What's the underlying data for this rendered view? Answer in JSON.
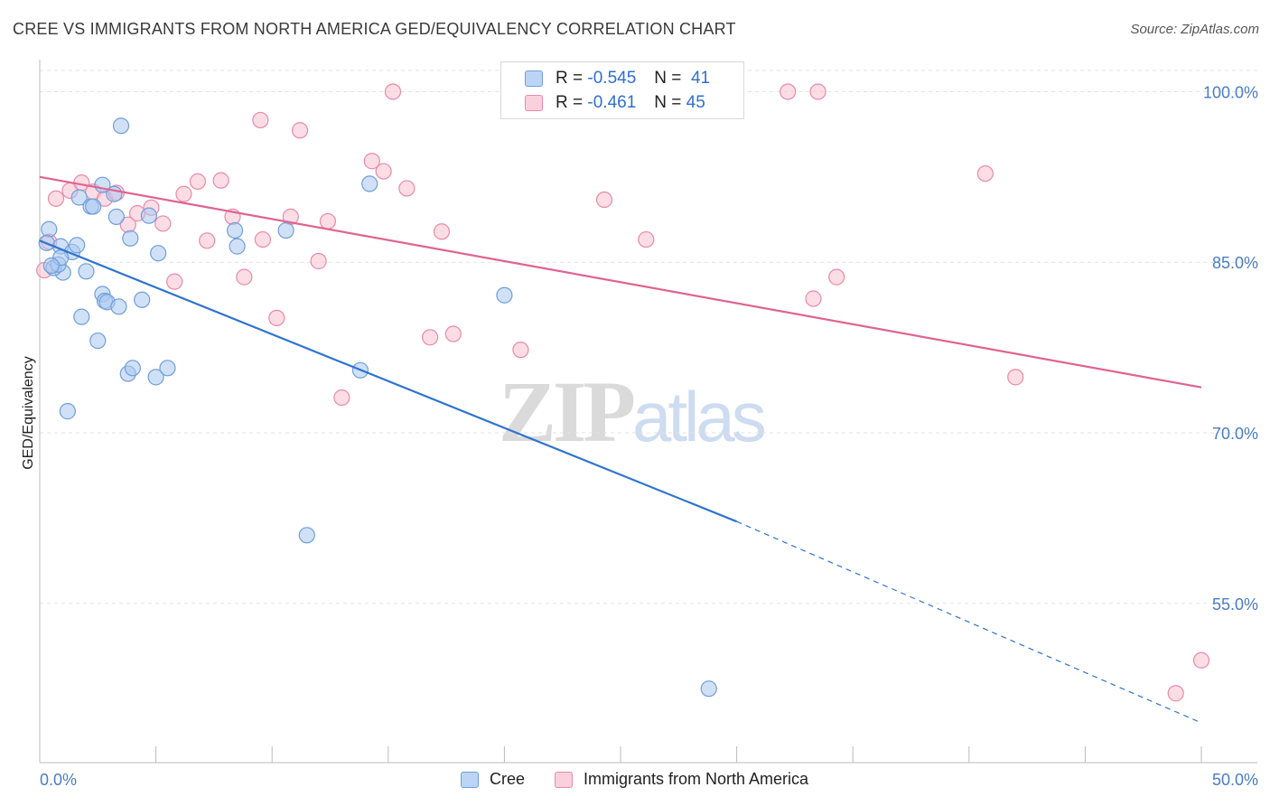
{
  "header": {
    "title": "CREE VS IMMIGRANTS FROM NORTH AMERICA GED/EQUIVALENCY CORRELATION CHART",
    "source": "Source: ZipAtlas.com"
  },
  "legend": {
    "rows": [
      {
        "r_label": "R =",
        "r_value": "-0.545",
        "n_label": "N =",
        "n_value": "41"
      },
      {
        "r_label": "R =",
        "r_value": "-0.461",
        "n_label": "N =",
        "n_value": "45"
      }
    ]
  },
  "bottom_legend": [
    "Cree",
    "Immigrants from North America"
  ],
  "watermark": {
    "zip": "ZIP",
    "atlas": "atlas"
  },
  "colors": {
    "cree_fill": "#a9c8f0",
    "cree_stroke": "#6f9edb",
    "cree_line": "#2f74d0",
    "imm_fill": "#f9c1d2",
    "imm_stroke": "#e88aa8",
    "imm_line": "#e0638f",
    "tick_text": "#4a7cc6",
    "grid": "#e2e2e2"
  },
  "chart_data": {
    "type": "scatter",
    "title": "CREE VS IMMIGRANTS FROM NORTH AMERICA GED/EQUIVALENCY CORRELATION CHART",
    "xlabel": "",
    "ylabel": "GED/Equivalency",
    "xlim": [
      0,
      50
    ],
    "ylim": [
      41,
      102.5
    ],
    "x_tick_labels": [
      "0.0%",
      "50.0%"
    ],
    "y_ticks": [
      55,
      70,
      85,
      100
    ],
    "y_tick_labels": [
      "55.0%",
      "70.0%",
      "85.0%",
      "100.0%"
    ],
    "grid": true,
    "legend_position": "top-center",
    "series": [
      {
        "name": "Cree",
        "points": [
          [
            3.5,
            97.0
          ],
          [
            0.4,
            87.9
          ],
          [
            0.3,
            86.7
          ],
          [
            0.9,
            86.4
          ],
          [
            1.0,
            84.1
          ],
          [
            0.6,
            84.5
          ],
          [
            0.8,
            84.8
          ],
          [
            1.4,
            85.9
          ],
          [
            1.6,
            86.5
          ],
          [
            2.0,
            84.2
          ],
          [
            1.7,
            90.7
          ],
          [
            2.2,
            89.9
          ],
          [
            2.3,
            89.9
          ],
          [
            2.7,
            91.8
          ],
          [
            3.2,
            91.0
          ],
          [
            3.3,
            89.0
          ],
          [
            3.9,
            87.1
          ],
          [
            4.7,
            89.1
          ],
          [
            5.1,
            85.8
          ],
          [
            8.4,
            87.8
          ],
          [
            8.5,
            86.4
          ],
          [
            10.6,
            87.8
          ],
          [
            14.2,
            91.9
          ],
          [
            1.8,
            80.2
          ],
          [
            2.7,
            82.2
          ],
          [
            2.8,
            81.6
          ],
          [
            2.9,
            81.5
          ],
          [
            3.4,
            81.1
          ],
          [
            4.4,
            81.7
          ],
          [
            2.5,
            78.1
          ],
          [
            3.8,
            75.2
          ],
          [
            4.0,
            75.7
          ],
          [
            5.0,
            74.9
          ],
          [
            5.5,
            75.7
          ],
          [
            1.2,
            71.9
          ],
          [
            13.8,
            75.5
          ],
          [
            20.0,
            82.1
          ],
          [
            11.5,
            61.0
          ],
          [
            28.8,
            47.5
          ],
          [
            0.9,
            85.4
          ],
          [
            0.5,
            84.7
          ]
        ],
        "trend": {
          "x0": 0,
          "y0": 86.9,
          "x1": 30,
          "y1": 62.2,
          "dashed_to_x": 50,
          "dashed_to_y": 44.5
        }
      },
      {
        "name": "Immigrants from North America",
        "points": [
          [
            0.2,
            84.3
          ],
          [
            0.7,
            90.6
          ],
          [
            1.3,
            91.3
          ],
          [
            1.8,
            92.0
          ],
          [
            2.3,
            91.2
          ],
          [
            2.8,
            90.6
          ],
          [
            3.3,
            91.1
          ],
          [
            3.8,
            88.3
          ],
          [
            4.2,
            89.3
          ],
          [
            4.8,
            89.8
          ],
          [
            5.3,
            88.4
          ],
          [
            5.8,
            83.3
          ],
          [
            6.2,
            91.0
          ],
          [
            6.8,
            92.1
          ],
          [
            7.2,
            86.9
          ],
          [
            7.8,
            92.2
          ],
          [
            8.3,
            89.0
          ],
          [
            8.8,
            83.7
          ],
          [
            9.6,
            87.0
          ],
          [
            9.5,
            97.5
          ],
          [
            10.2,
            80.1
          ],
          [
            10.8,
            89.0
          ],
          [
            11.2,
            96.6
          ],
          [
            12.0,
            85.1
          ],
          [
            12.4,
            88.6
          ],
          [
            13.0,
            73.1
          ],
          [
            14.3,
            93.9
          ],
          [
            14.8,
            93.0
          ],
          [
            15.2,
            100.0
          ],
          [
            15.8,
            91.5
          ],
          [
            16.8,
            78.4
          ],
          [
            17.3,
            87.7
          ],
          [
            17.8,
            78.7
          ],
          [
            20.7,
            77.3
          ],
          [
            24.3,
            90.5
          ],
          [
            26.1,
            87.0
          ],
          [
            32.2,
            100.0
          ],
          [
            33.5,
            100.0
          ],
          [
            33.3,
            81.8
          ],
          [
            34.3,
            83.7
          ],
          [
            40.7,
            92.8
          ],
          [
            42.0,
            74.9
          ],
          [
            50.0,
            50.0
          ],
          [
            48.9,
            47.1
          ],
          [
            0.4,
            86.8
          ]
        ],
        "trend": {
          "x0": 0,
          "y0": 92.5,
          "x1": 50,
          "y1": 74.0
        }
      }
    ]
  }
}
